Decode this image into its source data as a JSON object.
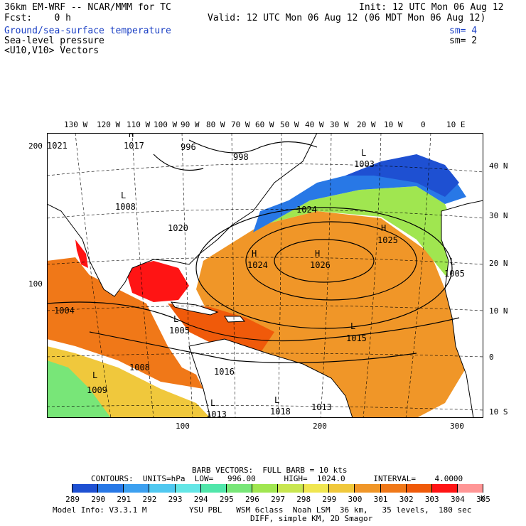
{
  "header": {
    "title": "36km EM-WRF -- NCAR/MMM for TC",
    "init": "Init: 12 UTC Mon 06 Aug 12",
    "fcst": "Fcst:    0 h",
    "valid": "Valid: 12 UTC Mon 06 Aug 12 (06 MDT Mon 06 Aug 12)",
    "field1": "Ground/sea-surface temperature",
    "field1_sm": "sm= 4",
    "field2": "Sea-level pressure",
    "field2_sm": "sm= 2",
    "field3": "<U10,V10> Vectors"
  },
  "top_lon_labels": [
    "130 W",
    "120 W",
    "110 W",
    "100 W",
    "90 W",
    "80 W",
    "70 W",
    "60 W",
    "50 W",
    "40 W",
    "30 W",
    "20 W",
    "10 W",
    "0",
    "10 E"
  ],
  "right_lat_labels": [
    "40 N",
    "30 N",
    "20 N",
    "10 N",
    "0",
    "10 S"
  ],
  "left_axis_labels": [
    "200",
    "100"
  ],
  "bottom_axis_labels": [
    "100",
    "200",
    "300"
  ],
  "pressure_labels": [
    {
      "label": "H",
      "value": "1017"
    },
    {
      "label": "L",
      "value": "996"
    },
    {
      "label": "L",
      "value": "998"
    },
    {
      "label": "L",
      "value": "1003"
    },
    {
      "label": "L",
      "value": "1008"
    },
    {
      "label": "L",
      "value": "1024"
    },
    {
      "label": "L",
      "value": "1020"
    },
    {
      "label": "H",
      "value": "1025"
    },
    {
      "label": "H",
      "value": "1024"
    },
    {
      "label": "H",
      "value": "1026"
    },
    {
      "label": "L",
      "value": "1005"
    },
    {
      "label": "L",
      "value": "1004"
    },
    {
      "label": "L",
      "value": "1005"
    },
    {
      "label": "L",
      "value": "1015"
    },
    {
      "label": "L",
      "value": "1008"
    },
    {
      "label": "L",
      "value": "1009"
    },
    {
      "label": "L",
      "value": "1016"
    },
    {
      "label": "L",
      "value": "1013"
    },
    {
      "label": "L",
      "value": "1018"
    },
    {
      "label": "L",
      "value": "1013"
    },
    {
      "label": "L",
      "value": "1021"
    }
  ],
  "footer": {
    "barb_vectors": "BARB VECTORS:  FULL BARB = 10 kts",
    "contours": "CONTOURS:  UNITS=hPa  LOW=   996.00      HIGH=  1024.0      INTERVAL=    4.0000",
    "colorbar_unit": "K",
    "colorbar_labels": [
      "289",
      "290",
      "291",
      "292",
      "293",
      "294",
      "295",
      "296",
      "297",
      "298",
      "299",
      "300",
      "301",
      "302",
      "303",
      "304",
      "305"
    ],
    "colorbar_colors": [
      "#ffffff",
      "#1e50d2",
      "#2878e6",
      "#3ca0f0",
      "#50c8f0",
      "#64e6e6",
      "#50e6aa",
      "#78e678",
      "#a0e650",
      "#c8e650",
      "#f0e650",
      "#f0c83c",
      "#f09628",
      "#f07818",
      "#f05a0a",
      "#ff1414",
      "#ff9696"
    ],
    "model_info": "Model Info: V3.3.1 M",
    "physics": "YSU PBL   WSM 6class  Noah LSM  36 km,   35 levels,  180 sec",
    "diff": "DIFF, simple KM, 2D Smagor"
  }
}
